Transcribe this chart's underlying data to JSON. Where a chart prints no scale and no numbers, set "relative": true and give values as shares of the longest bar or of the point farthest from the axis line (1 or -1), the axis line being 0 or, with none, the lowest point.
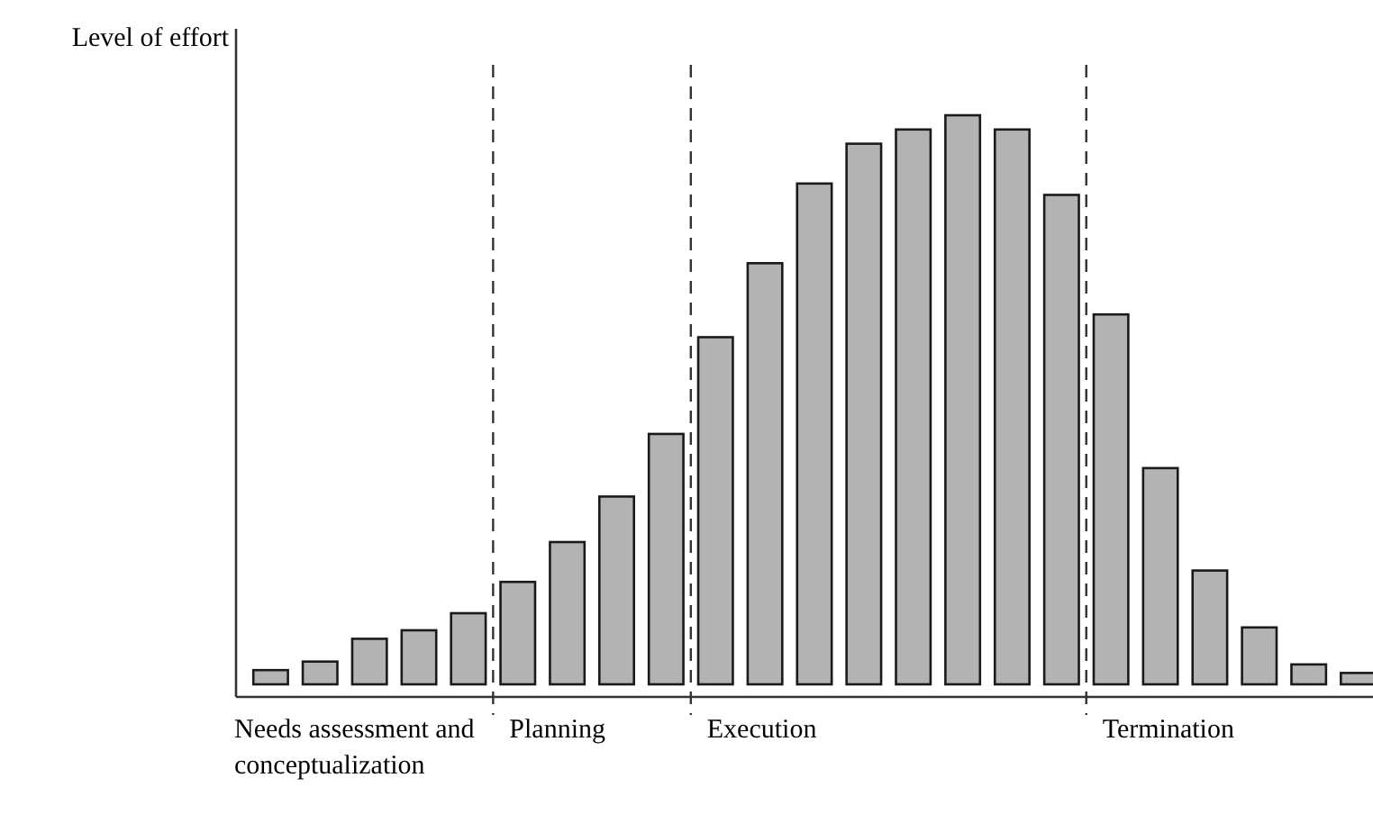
{
  "chart_data": {
    "type": "bar",
    "relative": true,
    "ylabel": "Level of effort",
    "categories": [
      null,
      null,
      null,
      null,
      null,
      null,
      null,
      null,
      null,
      null,
      null,
      null,
      null,
      null,
      null,
      null,
      null,
      null,
      null,
      null,
      null,
      null,
      null
    ],
    "color": "#b3b3b3",
    "values": [
      0.025,
      0.04,
      0.08,
      0.095,
      0.125,
      0.18,
      0.25,
      0.33,
      0.44,
      0.61,
      0.74,
      0.88,
      0.95,
      0.975,
      1,
      0.975,
      0.86,
      0.65,
      0.38,
      0.2,
      0.1,
      0.035,
      0.02
    ],
    "annotations": [
      "Needs assessment and conceptualization",
      "Planning",
      "Execution",
      "Termination"
    ]
  }
}
